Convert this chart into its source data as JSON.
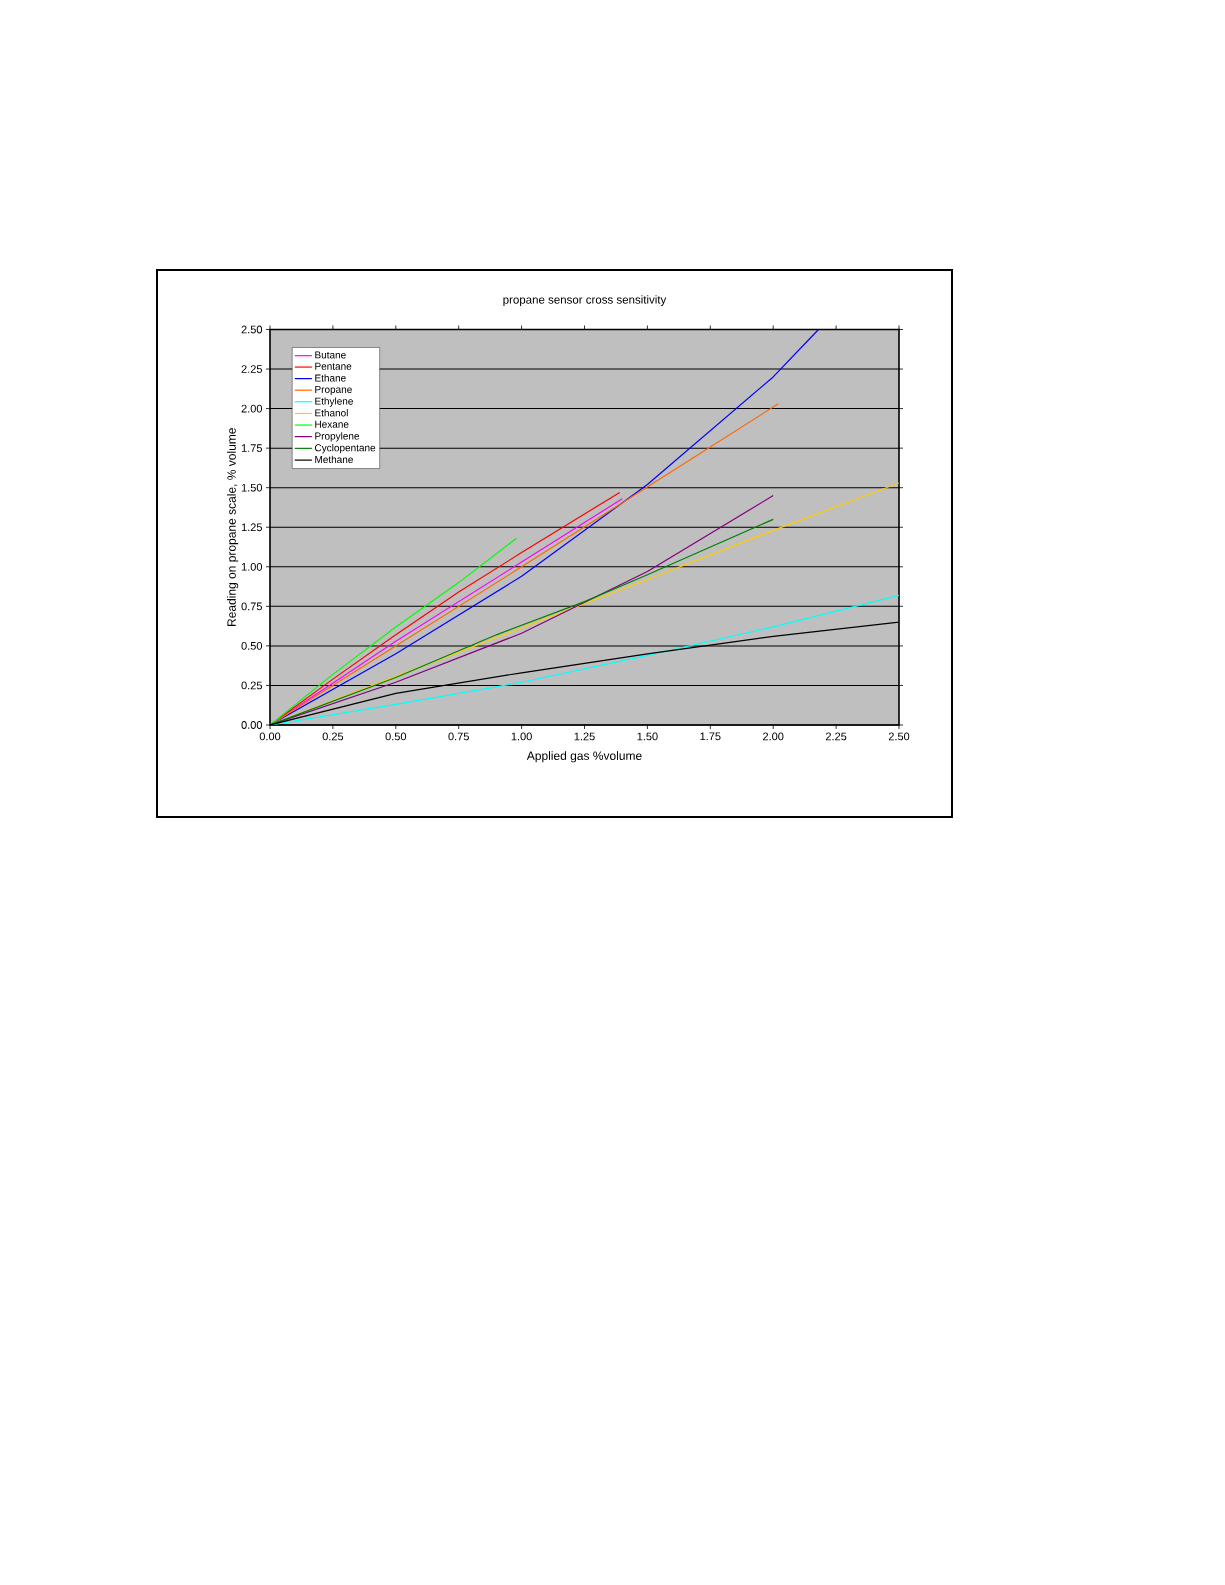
{
  "chart_data": {
    "type": "line",
    "title": "propane sensor cross sensitivity",
    "xlabel": "Applied gas %volume",
    "ylabel": "Reading on propane scale, % volume",
    "xlim": [
      0,
      2.5
    ],
    "ylim": [
      0,
      2.5
    ],
    "xticks": [
      {
        "value": 0,
        "label": "0.00"
      },
      {
        "value": 0.25,
        "label": "0.25"
      },
      {
        "value": 0.5,
        "label": "0.50"
      },
      {
        "value": 0.75,
        "label": "0.75"
      },
      {
        "value": 1,
        "label": "1.00"
      },
      {
        "value": 1.25,
        "label": "1.25"
      },
      {
        "value": 1.5,
        "label": "1.50"
      },
      {
        "value": 1.75,
        "label": "1.75"
      },
      {
        "value": 2,
        "label": "2.00"
      },
      {
        "value": 2.25,
        "label": "2.25"
      },
      {
        "value": 2.5,
        "label": "2.50"
      }
    ],
    "yticks": [
      {
        "value": 0,
        "label": "0.00"
      },
      {
        "value": 0.25,
        "label": "0.25"
      },
      {
        "value": 0.5,
        "label": "0.50"
      },
      {
        "value": 0.75,
        "label": "0.75"
      },
      {
        "value": 1,
        "label": "1.00"
      },
      {
        "value": 1.25,
        "label": "1.25"
      },
      {
        "value": 1.5,
        "label": "1.50"
      },
      {
        "value": 1.75,
        "label": "1.75"
      },
      {
        "value": 2,
        "label": "2.00"
      },
      {
        "value": 2.25,
        "label": "2.25"
      },
      {
        "value": 2.5,
        "label": "2.50"
      }
    ],
    "grid": "y",
    "legend": "top left",
    "marker": "none",
    "line_style": "solid",
    "series": [
      {
        "name": "Butane",
        "color": "#ff00ff",
        "x": [
          0,
          0.5,
          1.0,
          1.4
        ],
        "values": [
          0,
          0.53,
          1.03,
          1.43
        ]
      },
      {
        "name": "Pentane",
        "color": "#ff0000",
        "x": [
          0,
          0.25,
          0.5,
          0.75,
          1.0,
          1.39
        ],
        "values": [
          0,
          0.29,
          0.57,
          0.84,
          1.09,
          1.47
        ]
      },
      {
        "name": "Ethane",
        "color": "#0000ff",
        "x": [
          0,
          0.5,
          1.0,
          1.5,
          2.0,
          2.18
        ],
        "values": [
          0,
          0.45,
          0.94,
          1.52,
          2.2,
          2.5
        ]
      },
      {
        "name": "Propane",
        "color": "#ff6600",
        "x": [
          0,
          1.0,
          2.02
        ],
        "values": [
          0,
          1.0,
          2.03
        ]
      },
      {
        "name": "Ethylene",
        "color": "#00ffff",
        "x": [
          0,
          0.5,
          1.0,
          1.5,
          2.0,
          2.5
        ],
        "values": [
          0,
          0.13,
          0.27,
          0.44,
          0.62,
          0.82
        ]
      },
      {
        "name": "Ethanol",
        "color": "#ffcc00",
        "x": [
          0,
          1.5,
          2.0,
          2.5
        ],
        "values": [
          0,
          0.92,
          1.23,
          1.53
        ]
      },
      {
        "name": "Hexane",
        "color": "#00ff00",
        "x": [
          0,
          0.25,
          0.5,
          0.75,
          0.98
        ],
        "values": [
          0,
          0.32,
          0.62,
          0.9,
          1.18
        ]
      },
      {
        "name": "Propylene",
        "color": "#800080",
        "x": [
          0,
          0.5,
          1.0,
          1.5,
          2.0
        ],
        "values": [
          0,
          0.27,
          0.58,
          0.97,
          1.45
        ]
      },
      {
        "name": "Cyclopentane",
        "color": "#008000",
        "x": [
          0,
          0.5,
          0.9,
          1.25,
          1.5,
          2.0
        ],
        "values": [
          0,
          0.3,
          0.57,
          0.78,
          0.95,
          1.3
        ]
      },
      {
        "name": "Methane",
        "color": "#000000",
        "x": [
          0,
          0.5,
          1.0,
          1.5,
          2.0,
          2.5
        ],
        "values": [
          0,
          0.2,
          0.33,
          0.45,
          0.56,
          0.65
        ]
      }
    ]
  }
}
